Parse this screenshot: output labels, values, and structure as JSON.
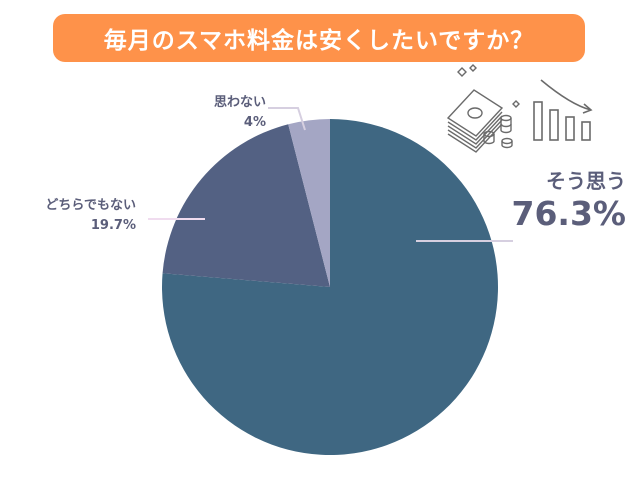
{
  "title": "毎月のスマホ料金は安くしたいですか？",
  "colors": {
    "title_bg": "#fe924a",
    "slice_yes": "#3f6782",
    "slice_neutral": "#536183",
    "slice_no": "#a4a6c4",
    "label_text": "#5b5e7a",
    "leader_line": "#d8cde0"
  },
  "labels": {
    "yes": {
      "category": "そう思う",
      "value": "76.3%"
    },
    "neutral": {
      "category": "どちらでもない",
      "value": "19.7%"
    },
    "no": {
      "category": "思わない",
      "value": "4%"
    }
  },
  "icons": [
    "money-stack-icon",
    "declining-bar-chart-icon"
  ],
  "chart_data": {
    "type": "pie",
    "title": "毎月のスマホ料金は安くしたいですか？",
    "categories": [
      "そう思う",
      "どちらでもない",
      "思わない"
    ],
    "values": [
      76.3,
      19.7,
      4.0
    ],
    "unit": "%",
    "start_angle": "12 o'clock, clockwise",
    "legend": "none (direct labels with leader lines)"
  }
}
